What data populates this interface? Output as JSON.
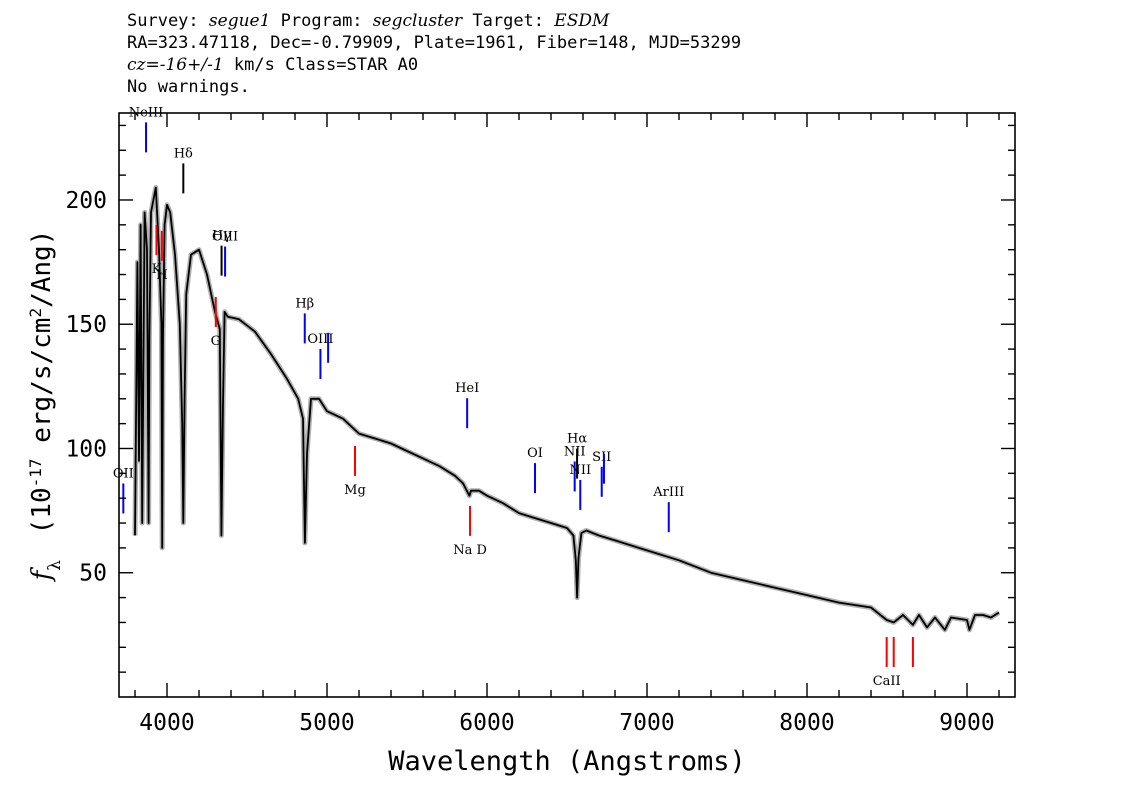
{
  "header": {
    "line1": {
      "survey_label": "Survey:",
      "survey": "segue1",
      "program_label": "Program:",
      "program": "segcluster",
      "target_label": "Target:",
      "target": "ESDM"
    },
    "line2": "RA=323.47118, Dec=-0.79909, Plate=1961, Fiber=148, MJD=53299",
    "line3": {
      "cz_label": "cz=",
      "cz_value": "-16+/-1",
      "cz_rest": "km/s  Class=STAR  A0"
    },
    "line4": "No warnings."
  },
  "chart_data": {
    "type": "line",
    "xlabel": "Wavelength (Angstroms)",
    "ylabel": {
      "prefix": "f",
      "subscript": "λ",
      "units_open": "(10",
      "units_exp": "-17",
      "units_mid": " erg/s/cm",
      "units_exp2": "2",
      "units_close": "/Ang)"
    },
    "xlim": [
      3700,
      9300
    ],
    "ylim": [
      0,
      235
    ],
    "xticks": [
      4000,
      5000,
      6000,
      7000,
      8000,
      9000
    ],
    "yticks": [
      50,
      100,
      150,
      200
    ],
    "grid": false,
    "series": [
      {
        "color": "#000000",
        "x": [
          3800,
          3815,
          3825,
          3835,
          3845,
          3860,
          3875,
          3885,
          3890,
          3900,
          3915,
          3930,
          3950,
          3965,
          3970,
          3975,
          3985,
          4000,
          4020,
          4050,
          4080,
          4095,
          4102,
          4110,
          4120,
          4150,
          4200,
          4250,
          4300,
          4330,
          4340,
          4350,
          4360,
          4380,
          4450,
          4550,
          4650,
          4750,
          4820,
          4850,
          4862,
          4875,
          4900,
          4950,
          5000,
          5100,
          5200,
          5300,
          5400,
          5500,
          5600,
          5700,
          5800,
          5850,
          5890,
          5900,
          5950,
          6000,
          6100,
          6200,
          6300,
          6400,
          6500,
          6540,
          6555,
          6563,
          6572,
          6590,
          6620,
          6700,
          6800,
          7000,
          7200,
          7400,
          7600,
          7800,
          8000,
          8200,
          8400,
          8498,
          8542,
          8600,
          8662,
          8700,
          8750,
          8800,
          8862,
          8900,
          9000,
          9015,
          9050,
          9100,
          9150,
          9200
        ],
        "y": [
          65,
          175,
          95,
          190,
          70,
          195,
          180,
          70,
          145,
          195,
          200,
          205,
          180,
          150,
          60,
          145,
          190,
          198,
          195,
          178,
          150,
          110,
          70,
          120,
          162,
          178,
          180,
          170,
          155,
          148,
          65,
          118,
          155,
          153,
          152,
          147,
          138,
          128,
          120,
          112,
          62,
          98,
          120,
          120,
          115,
          112,
          106,
          104,
          102,
          99,
          96,
          93,
          89,
          86,
          81,
          83,
          83,
          81,
          78,
          74,
          72,
          70,
          68,
          65,
          55,
          40,
          56,
          66,
          67,
          65,
          63,
          59,
          55,
          50,
          47,
          44,
          41,
          38,
          36,
          31,
          30,
          33,
          29,
          33,
          28,
          32,
          27,
          32,
          31,
          27,
          33,
          33,
          32,
          34
        ]
      }
    ],
    "line_labels": [
      {
        "name": "OII",
        "wavelength": 3727,
        "color": "#0000ff",
        "side": "above"
      },
      {
        "name": "NeIII",
        "wavelength": 3869,
        "color": "#0000ff",
        "side": "above"
      },
      {
        "name": "Hδ",
        "wavelength": 4102,
        "color": "#000000",
        "side": "above"
      },
      {
        "name": "Hγ",
        "wavelength": 4341,
        "color": "#000000",
        "side": "above"
      },
      {
        "name": "OIII",
        "wavelength": 4363,
        "color": "#0000ff",
        "side": "above"
      },
      {
        "name": "Hβ",
        "wavelength": 4861,
        "color": "#0000ff",
        "side": "above"
      },
      {
        "name": "OIII",
        "wavelength": 4959,
        "color": "#0000ff",
        "side": "above"
      },
      {
        "name": "OIII",
        "wavelength": 5007,
        "color": "#0000ff",
        "side": "above",
        "label": false
      },
      {
        "name": "HeI",
        "wavelength": 5876,
        "color": "#0000ff",
        "side": "above"
      },
      {
        "name": "OI",
        "wavelength": 6300,
        "color": "#0000ff",
        "side": "above"
      },
      {
        "name": "NII",
        "wavelength": 6548,
        "color": "#0000ff",
        "side": "above"
      },
      {
        "name": "Hα",
        "wavelength": 6563,
        "color": "#000000",
        "side": "above"
      },
      {
        "name": "NII",
        "wavelength": 6583,
        "color": "#0000ff",
        "side": "above"
      },
      {
        "name": "SII",
        "wavelength": 6717,
        "color": "#0000ff",
        "side": "above"
      },
      {
        "name": "SII",
        "wavelength": 6731,
        "color": "#0000ff",
        "side": "above",
        "label": false
      },
      {
        "name": "ArIII",
        "wavelength": 7136,
        "color": "#0000ff",
        "side": "above"
      },
      {
        "name": "K",
        "wavelength": 3934,
        "color": "#ff0000",
        "side": "below"
      },
      {
        "name": "H",
        "wavelength": 3968,
        "color": "#ff0000",
        "side": "below"
      },
      {
        "name": "G",
        "wavelength": 4305,
        "color": "#ff0000",
        "side": "below"
      },
      {
        "name": "Mg",
        "wavelength": 5175,
        "color": "#ff0000",
        "side": "below"
      },
      {
        "name": "Na D",
        "wavelength": 5894,
        "color": "#ff0000",
        "side": "below"
      },
      {
        "name": "CaII",
        "wavelength": 8498,
        "color": "#ff0000",
        "side": "below"
      },
      {
        "name": "CaII",
        "wavelength": 8542,
        "color": "#ff0000",
        "side": "below",
        "label": false
      },
      {
        "name": "CaII",
        "wavelength": 8662,
        "color": "#ff0000",
        "side": "below",
        "label": false
      }
    ],
    "error_color": "#b0b0b0"
  }
}
